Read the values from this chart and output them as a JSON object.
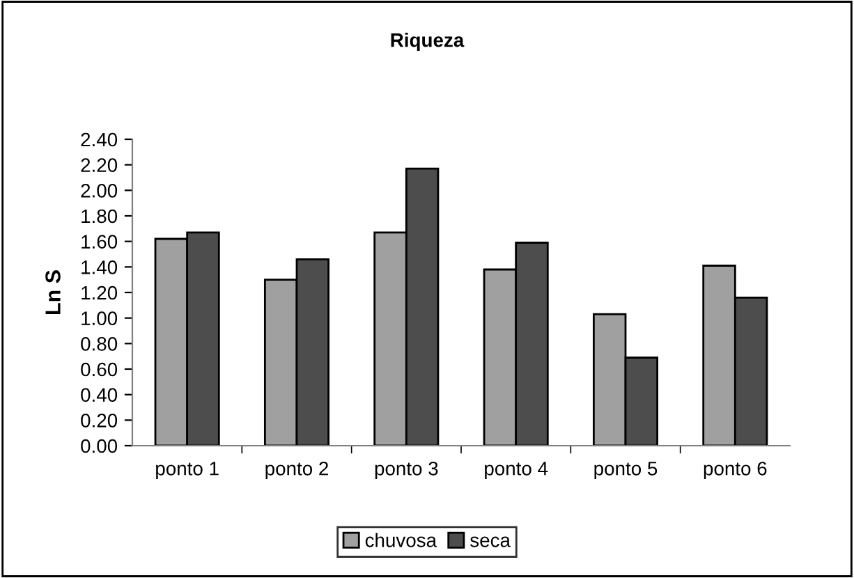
{
  "chart_data": {
    "type": "bar",
    "title": "Riqueza",
    "ylabel": "Ln S",
    "categories": [
      "ponto 1",
      "ponto 2",
      "ponto 3",
      "ponto 4",
      "ponto 5",
      "ponto 6"
    ],
    "series": [
      {
        "name": "chuvosa",
        "color": "#a0a0a0",
        "values": [
          1.62,
          1.3,
          1.67,
          1.38,
          1.03,
          1.41
        ]
      },
      {
        "name": "seca",
        "color": "#4d4d4d",
        "values": [
          1.67,
          1.46,
          2.17,
          1.59,
          0.69,
          1.16
        ]
      }
    ],
    "ylim": [
      0,
      2.4
    ],
    "yticks": [
      {
        "value": 0,
        "label": "0.00"
      },
      {
        "value": 0.2,
        "label": "0.20"
      },
      {
        "value": 0.4,
        "label": "0.40"
      },
      {
        "value": 0.6,
        "label": "0.60"
      },
      {
        "value": 0.8,
        "label": "0.80"
      },
      {
        "value": 1.0,
        "label": "1.00"
      },
      {
        "value": 1.2,
        "label": "1.20"
      },
      {
        "value": 1.4,
        "label": "1.40"
      },
      {
        "value": 1.6,
        "label": "1.60"
      },
      {
        "value": 1.8,
        "label": "1.80"
      },
      {
        "value": 2.0,
        "label": "2.00"
      },
      {
        "value": 2.2,
        "label": "2.20"
      },
      {
        "value": 2.4,
        "label": "2.40"
      }
    ],
    "grid": false,
    "legend": "bottom"
  }
}
